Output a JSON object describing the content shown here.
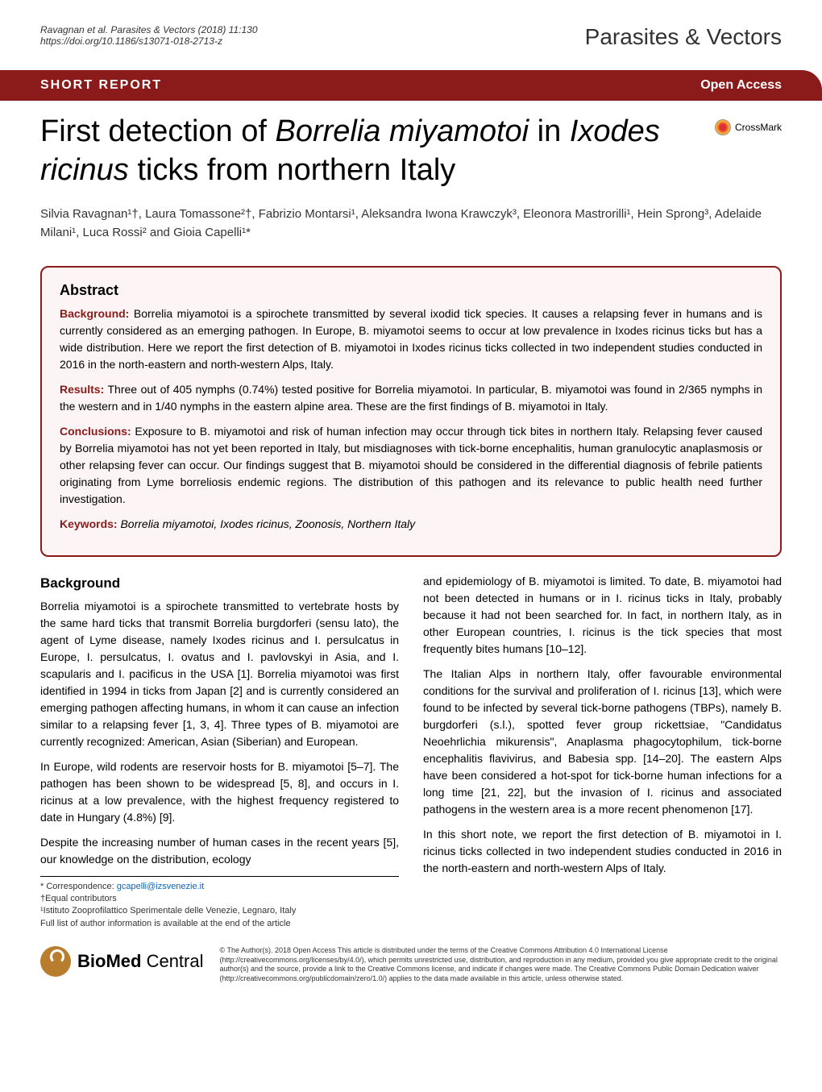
{
  "header": {
    "citation": "Ravagnan et al. Parasites & Vectors (2018) 11:130",
    "doi": "https://doi.org/10.1186/s13071-018-2713-z",
    "journal": "Parasites & Vectors"
  },
  "bar": {
    "left": "SHORT REPORT",
    "right": "Open Access"
  },
  "crossmark": "CrossMark",
  "title": {
    "part1": "First detection of ",
    "em1": "Borrelia miyamotoi",
    "part2": " in ",
    "em2": "Ixodes ricinus",
    "part3": " ticks from northern Italy"
  },
  "authors": "Silvia Ravagnan¹†, Laura Tomassone²†, Fabrizio Montarsi¹, Aleksandra Iwona Krawczyk³, Eleonora Mastrorilli¹, Hein Sprong³, Adelaide Milani¹, Luca Rossi² and Gioia Capelli¹*",
  "abstract": {
    "heading": "Abstract",
    "background_label": "Background:",
    "background": " Borrelia miyamotoi is a spirochete transmitted by several ixodid tick species. It causes a relapsing fever in humans and is currently considered as an emerging pathogen. In Europe, B. miyamotoi seems to occur at low prevalence in Ixodes ricinus ticks but has a wide distribution. Here we report the first detection of B. miyamotoi in Ixodes ricinus ticks collected in two independent studies conducted in 2016 in the north-eastern and north-western Alps, Italy.",
    "results_label": "Results:",
    "results": " Three out of 405 nymphs (0.74%) tested positive for Borrelia miyamotoi. In particular, B. miyamotoi was found in 2/365 nymphs in the western and in 1/40 nymphs in the eastern alpine area. These are the first findings of B. miyamotoi in Italy.",
    "conclusions_label": "Conclusions:",
    "conclusions": " Exposure to B. miyamotoi and risk of human infection may occur through tick bites in northern Italy. Relapsing fever caused by Borrelia miyamotoi has not yet been reported in Italy, but misdiagnoses with tick-borne encephalitis, human granulocytic anaplasmosis or other relapsing fever can occur. Our findings suggest that B. miyamotoi should be considered in the differential diagnosis of febrile patients originating from Lyme borreliosis endemic regions. The distribution of this pathogen and its relevance to public health need further investigation.",
    "keywords_label": "Keywords:",
    "keywords": " Borrelia miyamotoi, Ixodes ricinus, Zoonosis, Northern Italy"
  },
  "body": {
    "heading": "Background",
    "p1": "Borrelia miyamotoi is a spirochete transmitted to vertebrate hosts by the same hard ticks that transmit Borrelia burgdorferi (sensu lato), the agent of Lyme disease, namely Ixodes ricinus and I. persulcatus in Europe, I. persulcatus, I. ovatus and I. pavlovskyi in Asia, and I. scapularis and I. pacificus in the USA [1]. Borrelia miyamotoi was first identified in 1994 in ticks from Japan [2] and is currently considered an emerging pathogen affecting humans, in whom it can cause an infection similar to a relapsing fever [1, 3, 4]. Three types of B. miyamotoi are currently recognized: American, Asian (Siberian) and European.",
    "p2": "In Europe, wild rodents are reservoir hosts for B. miyamotoi [5–7]. The pathogen has been shown to be widespread [5, 8], and occurs in I. ricinus at a low prevalence, with the highest frequency registered to date in Hungary (4.8%) [9].",
    "p3": "Despite the increasing number of human cases in the recent years [5], our knowledge on the distribution, ecology",
    "p4": "and epidemiology of B. miyamotoi is limited. To date, B. miyamotoi had not been detected in humans or in I. ricinus ticks in Italy, probably because it had not been searched for. In fact, in northern Italy, as in other European countries, I. ricinus is the tick species that most frequently bites humans [10–12].",
    "p5": "The Italian Alps in northern Italy, offer favourable environmental conditions for the survival and proliferation of I. ricinus [13], which were found to be infected by several tick-borne pathogens (TBPs), namely B. burgdorferi (s.l.), spotted fever group rickettsiae, \"Candidatus Neoehrlichia mikurensis\", Anaplasma phagocytophilum, tick-borne encephalitis flavivirus, and Babesia spp. [14–20]. The eastern Alps have been considered a hot-spot for tick-borne human infections for a long time [21, 22], but the invasion of I. ricinus and associated pathogens in the western area is a more recent phenomenon [17].",
    "p6": "In this short note, we report the first detection of B. miyamotoi in I. ricinus ticks collected in two independent studies conducted in 2016 in the north-eastern and north-western Alps of Italy."
  },
  "correspondence": {
    "line1": "* Correspondence: ",
    "email": "gcapelli@izsvenezie.it",
    "line2": "†Equal contributors",
    "line3": "¹Istituto Zooprofilattico Sperimentale delle Venezie, Legnaro, Italy",
    "line4": "Full list of author information is available at the end of the article"
  },
  "footer": {
    "bmc": "BioMed",
    "bmc2": " Central",
    "license": "© The Author(s). 2018 Open Access This article is distributed under the terms of the Creative Commons Attribution 4.0 International License (http://creativecommons.org/licenses/by/4.0/), which permits unrestricted use, distribution, and reproduction in any medium, provided you give appropriate credit to the original author(s) and the source, provide a link to the Creative Commons license, and indicate if changes were made. The Creative Commons Public Domain Dedication waiver (http://creativecommons.org/publicdomain/zero/1.0/) applies to the data made available in this article, unless otherwise stated."
  },
  "colors": {
    "brand": "#8B1A1A",
    "link": "#0066cc",
    "bmc": "#b87e2e"
  }
}
